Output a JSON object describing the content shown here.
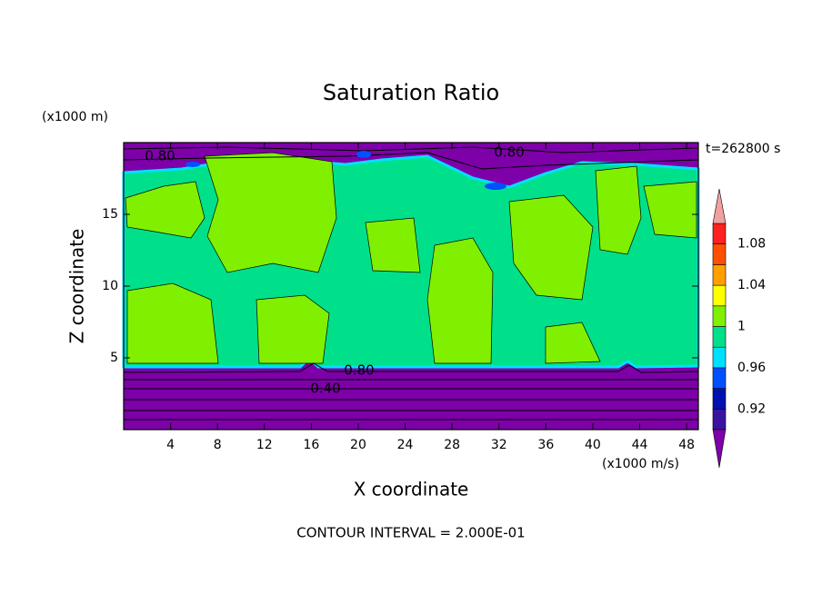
{
  "chart_data": {
    "type": "contour",
    "title": "Saturation Ratio",
    "x_label": "X coordinate",
    "y_label": "Z coordinate",
    "x_unit": "(x1000 m/s)",
    "y_unit": "(x1000 m)",
    "time_label": "t=262800 s",
    "footer": "CONTOUR INTERVAL = 2.000E-01",
    "xlim": [
      0,
      49
    ],
    "xticks": [
      4,
      8,
      12,
      16,
      20,
      24,
      28,
      32,
      36,
      40,
      44,
      48
    ],
    "ylim": [
      0,
      20
    ],
    "yticks": [
      5,
      10,
      15
    ],
    "colorbar": {
      "levels": [
        0.9,
        0.92,
        0.94,
        0.96,
        0.98,
        1,
        1.02,
        1.04,
        1.06,
        1.08,
        1.1
      ],
      "colors": [
        "#3a14a0",
        "#0010b0",
        "#0050ff",
        "#00e0ff",
        "#00e08a",
        "#80f000",
        "#ffff00",
        "#ffa000",
        "#ff5000",
        "#ff2020"
      ],
      "under_color": "#7d00a8",
      "over_color": "#f0a0a0",
      "ticks": [
        0.92,
        0.96,
        1,
        1.04,
        1.08
      ]
    },
    "contour_labels": [
      {
        "value": 0.8,
        "label": "0.80"
      },
      {
        "value": 0.4,
        "label": "0.40"
      },
      {
        "value": 0.8,
        "label": "0.80"
      },
      {
        "value": 0.8,
        "label": "0.80"
      }
    ]
  }
}
